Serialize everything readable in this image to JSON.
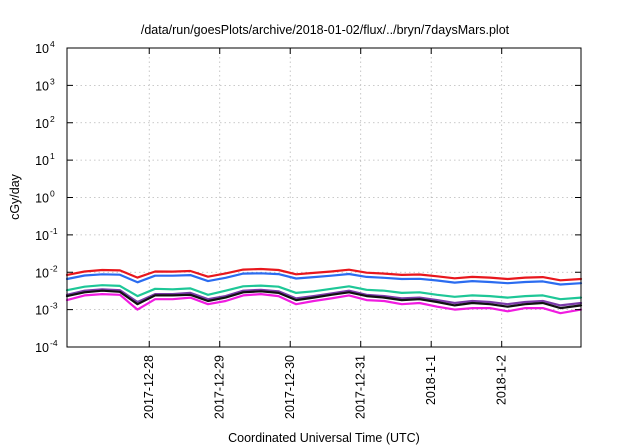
{
  "chart_data": {
    "type": "line",
    "title": "/data/run/goesPlots/archive/2018-01-02/flux/../bryn/7daysMars.plot",
    "xlabel": "Coordinated Universal Time (UTC)",
    "ylabel": "cGy/day",
    "yscale": "log",
    "ylim": [
      0.0001,
      10000
    ],
    "y_ticks": [
      {
        "base": "10",
        "exp": "-4"
      },
      {
        "base": "10",
        "exp": "-3"
      },
      {
        "base": "10",
        "exp": "-2"
      },
      {
        "base": "10",
        "exp": "-1"
      },
      {
        "base": "10",
        "exp": "0"
      },
      {
        "base": "10",
        "exp": "1"
      },
      {
        "base": "10",
        "exp": "2"
      },
      {
        "base": "10",
        "exp": "3"
      },
      {
        "base": "10",
        "exp": "4"
      }
    ],
    "xlim": [
      "2017-12-26T20:00",
      "2018-01-03T03:00"
    ],
    "x_ticks": [
      {
        "value": "2017-12-28T00:00",
        "label": "2017-12-28"
      },
      {
        "value": "2017-12-29T00:00",
        "label": "2017-12-29"
      },
      {
        "value": "2017-12-30T00:00",
        "label": "2017-12-30"
      },
      {
        "value": "2017-12-31T00:00",
        "label": "2017-12-31"
      },
      {
        "value": "2018-01-01T00:00",
        "label": "2018-1-1"
      },
      {
        "value": "2018-01-02T00:00",
        "label": "2018-1-2"
      }
    ],
    "grid": true,
    "x": [
      "2017-12-26T20:00",
      "2017-12-27T02:00",
      "2017-12-27T08:00",
      "2017-12-27T14:00",
      "2017-12-27T20:00",
      "2017-12-28T02:00",
      "2017-12-28T08:00",
      "2017-12-28T14:00",
      "2017-12-28T20:00",
      "2017-12-29T02:00",
      "2017-12-29T08:00",
      "2017-12-29T14:00",
      "2017-12-29T20:00",
      "2017-12-30T02:00",
      "2017-12-30T08:00",
      "2017-12-30T14:00",
      "2017-12-30T20:00",
      "2017-12-31T02:00",
      "2017-12-31T08:00",
      "2017-12-31T14:00",
      "2017-12-31T20:00",
      "2018-01-01T02:00",
      "2018-01-01T08:00",
      "2018-01-01T14:00",
      "2018-01-01T20:00",
      "2018-01-02T02:00",
      "2018-01-02T08:00",
      "2018-01-02T14:00",
      "2018-01-02T20:00",
      "2018-01-03T03:00"
    ],
    "series": [
      {
        "color": "#e8171d",
        "values": [
          0.0085,
          0.0105,
          0.0115,
          0.0112,
          0.0072,
          0.0105,
          0.0104,
          0.0108,
          0.0076,
          0.0093,
          0.0118,
          0.0122,
          0.0115,
          0.0088,
          0.0096,
          0.0105,
          0.0117,
          0.0097,
          0.0092,
          0.0085,
          0.0087,
          0.0078,
          0.0069,
          0.0075,
          0.0072,
          0.0066,
          0.0072,
          0.0074,
          0.0061,
          0.0066
        ]
      },
      {
        "color": "#2b6cf0",
        "values": [
          0.0066,
          0.0082,
          0.0088,
          0.0086,
          0.0054,
          0.0081,
          0.0081,
          0.0084,
          0.0058,
          0.0071,
          0.0092,
          0.0094,
          0.0089,
          0.0068,
          0.0074,
          0.0081,
          0.009,
          0.0075,
          0.0071,
          0.0066,
          0.0067,
          0.006,
          0.0053,
          0.0058,
          0.0055,
          0.0051,
          0.0055,
          0.0057,
          0.0047,
          0.0051
        ]
      },
      {
        "color": "#1ec797",
        "values": [
          0.0033,
          0.0041,
          0.0045,
          0.0043,
          0.0023,
          0.0036,
          0.0035,
          0.0037,
          0.0025,
          0.0032,
          0.0042,
          0.0044,
          0.0041,
          0.0028,
          0.0031,
          0.0036,
          0.0042,
          0.0034,
          0.0032,
          0.0028,
          0.0029,
          0.0025,
          0.0022,
          0.0024,
          0.0023,
          0.0021,
          0.0023,
          0.0024,
          0.0019,
          0.0021
        ]
      },
      {
        "color": "#7a3aa8",
        "values": [
          0.0025,
          0.0032,
          0.0035,
          0.0033,
          0.0016,
          0.0026,
          0.0026,
          0.0028,
          0.0019,
          0.0023,
          0.0032,
          0.0034,
          0.0031,
          0.002,
          0.0023,
          0.0027,
          0.0032,
          0.0025,
          0.0023,
          0.002,
          0.0021,
          0.0018,
          0.0015,
          0.0017,
          0.0016,
          0.0014,
          0.0016,
          0.0017,
          0.0013,
          0.0015
        ]
      },
      {
        "color": "#111111",
        "values": [
          0.0023,
          0.0029,
          0.0032,
          0.003,
          0.0014,
          0.0024,
          0.0024,
          0.0025,
          0.0017,
          0.0021,
          0.0029,
          0.0031,
          0.0028,
          0.0018,
          0.0021,
          0.0025,
          0.0029,
          0.0023,
          0.0021,
          0.0018,
          0.0019,
          0.0016,
          0.0013,
          0.0015,
          0.0014,
          0.0012,
          0.0014,
          0.0015,
          0.0011,
          0.0013
        ]
      },
      {
        "color": "#f01ce0",
        "values": [
          0.0018,
          0.0024,
          0.0026,
          0.0025,
          0.001,
          0.0019,
          0.0019,
          0.0021,
          0.0014,
          0.0017,
          0.0024,
          0.0026,
          0.0023,
          0.0014,
          0.0017,
          0.002,
          0.0024,
          0.0018,
          0.0017,
          0.0014,
          0.0015,
          0.0012,
          0.001,
          0.0011,
          0.0011,
          0.0009,
          0.0011,
          0.0011,
          0.0008,
          0.001
        ]
      }
    ]
  }
}
